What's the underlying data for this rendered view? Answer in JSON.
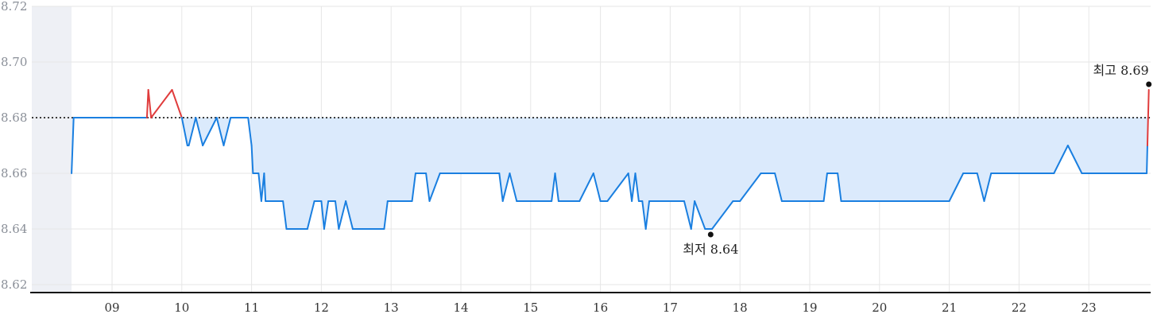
{
  "chart_data": {
    "type": "line",
    "x_unit": "hour",
    "ylim": [
      8.62,
      8.72
    ],
    "y_ticks": [
      "8.72",
      "8.70",
      "8.68",
      "8.66",
      "8.64",
      "8.62"
    ],
    "x_ticks": [
      "09",
      "10",
      "11",
      "12",
      "13",
      "14",
      "15",
      "16",
      "17",
      "18",
      "19",
      "20",
      "21",
      "22",
      "23"
    ],
    "reference_value": 8.68,
    "reference_style": "dotted",
    "grid": true,
    "colors": {
      "line": "#1a7fe0",
      "above": "#e03c3c",
      "fill": "#dbeafc",
      "reference": "#000000",
      "preopen": "#eef0f5"
    },
    "series": [
      {
        "x": [
          8.42,
          8.45,
          9.0,
          9.5,
          9.52,
          9.56,
          9.86,
          10.0,
          10.08,
          10.1,
          10.2,
          10.3,
          10.5,
          10.6,
          10.7,
          10.85,
          10.95,
          11.0,
          11.02,
          11.1,
          11.14,
          11.18,
          11.2,
          11.3,
          11.45,
          11.5,
          11.8,
          11.9,
          12.0,
          12.04,
          12.1,
          12.2,
          12.25,
          12.35,
          12.45,
          12.6,
          12.7,
          12.9,
          12.95,
          13.3,
          13.35,
          13.5,
          13.55,
          13.7,
          13.8,
          14.2,
          14.55,
          14.6,
          14.7,
          14.8,
          14.9,
          15.3,
          15.35,
          15.4,
          15.7,
          15.9,
          16.0,
          16.1,
          16.4,
          16.45,
          16.5,
          16.55,
          16.6,
          16.65,
          16.7,
          17.0,
          17.2,
          17.3,
          17.35,
          17.5,
          17.6,
          17.9,
          18.0,
          18.3,
          18.35,
          18.5,
          18.6,
          18.9,
          19.0,
          19.2,
          19.25,
          19.4,
          19.45,
          20.0,
          20.5,
          21.0,
          21.2,
          21.4,
          21.5,
          21.6,
          22.0,
          22.5,
          22.7,
          22.9,
          23.0,
          23.5,
          23.83,
          23.84,
          23.86
        ],
        "values": [
          8.66,
          8.68,
          8.68,
          8.68,
          8.69,
          8.68,
          8.69,
          8.68,
          8.67,
          8.67,
          8.68,
          8.67,
          8.68,
          8.67,
          8.68,
          8.68,
          8.68,
          8.67,
          8.66,
          8.66,
          8.65,
          8.66,
          8.65,
          8.65,
          8.65,
          8.64,
          8.64,
          8.65,
          8.65,
          8.64,
          8.65,
          8.65,
          8.64,
          8.65,
          8.64,
          8.64,
          8.64,
          8.64,
          8.65,
          8.65,
          8.66,
          8.66,
          8.65,
          8.66,
          8.66,
          8.66,
          8.66,
          8.65,
          8.66,
          8.65,
          8.65,
          8.65,
          8.66,
          8.65,
          8.65,
          8.66,
          8.65,
          8.65,
          8.66,
          8.65,
          8.66,
          8.65,
          8.65,
          8.64,
          8.65,
          8.65,
          8.65,
          8.64,
          8.65,
          8.64,
          8.64,
          8.65,
          8.65,
          8.66,
          8.66,
          8.66,
          8.65,
          8.65,
          8.65,
          8.65,
          8.66,
          8.66,
          8.65,
          8.65,
          8.65,
          8.65,
          8.66,
          8.66,
          8.65,
          8.66,
          8.66,
          8.66,
          8.67,
          8.66,
          8.66,
          8.66,
          8.66,
          8.67,
          8.69
        ]
      }
    ],
    "annotations": [
      {
        "label": "최고 8.69",
        "x": 23.86,
        "y": 8.692
      },
      {
        "label": "최저 8.64",
        "x": 17.58,
        "y": 8.638
      }
    ]
  }
}
